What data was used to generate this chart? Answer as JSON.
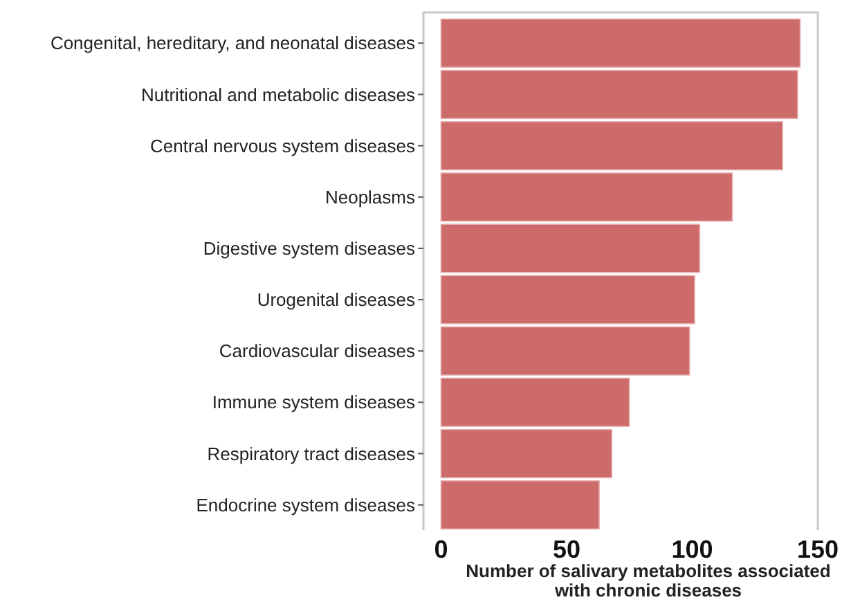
{
  "chart_data": {
    "type": "bar",
    "orientation": "horizontal",
    "xlabel": "Number of salivary metabolites associated\nwith chronic diseases",
    "categories": [
      "Congenital, hereditary, and neonatal diseases",
      "Nutritional and metabolic diseases",
      "Central nervous system diseases",
      "Neoplasms",
      "Digestive system diseases",
      "Urogenital diseases",
      "Cardiovascular diseases",
      "Immune system diseases",
      "Respiratory tract diseases",
      "Endocrine system diseases"
    ],
    "values": [
      143,
      142,
      136,
      116,
      103,
      101,
      99,
      75,
      68,
      63
    ],
    "color": "#cd6b6b",
    "xlim": [
      -7,
      150
    ],
    "xticks": [
      0,
      50,
      100,
      150
    ],
    "grid": false
  }
}
